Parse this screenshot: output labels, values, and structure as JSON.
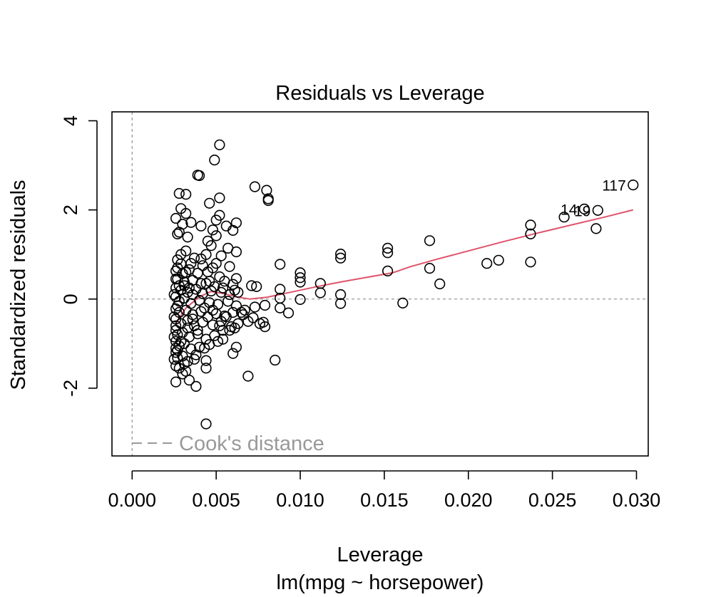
{
  "chart_data": {
    "type": "scatter",
    "title": "Residuals vs Leverage",
    "xlabel": "Leverage",
    "subtitle": "lm(mpg ~ horsepower)",
    "ylabel": "Standardized residuals",
    "xlim": [
      -0.0012,
      0.0307
    ],
    "ylim": [
      -3.52,
      4.2
    ],
    "x_ticks": [
      0.0,
      0.005,
      0.01,
      0.015,
      0.02,
      0.025,
      0.03
    ],
    "x_tick_labels": [
      "0.000",
      "0.005",
      "0.010",
      "0.015",
      "0.020",
      "0.025",
      "0.030"
    ],
    "y_ticks": [
      -2,
      0,
      2,
      4
    ],
    "y_tick_labels": [
      "-2",
      "0",
      "2",
      "4"
    ],
    "legend": {
      "label": "Cook's distance",
      "position": "bottom-left",
      "color": "#999999"
    },
    "reference_lines": {
      "h": 0,
      "v": 0,
      "color": "#999999"
    },
    "smooth_color": "#DF536B",
    "labeled_points": [
      {
        "label": "117",
        "x": 0.0298,
        "y": 2.56
      },
      {
        "label": "14",
        "x": 0.0269,
        "y": 2.02
      },
      {
        "label": "19",
        "x": 0.0277,
        "y": 1.99
      }
    ],
    "points": [
      [
        0.0052,
        3.46
      ],
      [
        0.0049,
        3.12
      ],
      [
        0.0039,
        2.78
      ],
      [
        0.004,
        2.77
      ],
      [
        0.0073,
        2.52
      ],
      [
        0.008,
        2.44
      ],
      [
        0.0028,
        2.37
      ],
      [
        0.0032,
        2.35
      ],
      [
        0.0052,
        2.27
      ],
      [
        0.0081,
        2.25
      ],
      [
        0.0081,
        2.21
      ],
      [
        0.0046,
        2.15
      ],
      [
        0.0029,
        2.03
      ],
      [
        0.0032,
        1.92
      ],
      [
        0.0052,
        1.88
      ],
      [
        0.0026,
        1.81
      ],
      [
        0.0035,
        1.72
      ],
      [
        0.005,
        1.77
      ],
      [
        0.0062,
        1.71
      ],
      [
        0.003,
        1.68
      ],
      [
        0.0041,
        1.64
      ],
      [
        0.0056,
        1.64
      ],
      [
        0.0028,
        1.5
      ],
      [
        0.0033,
        1.39
      ],
      [
        0.0048,
        1.55
      ],
      [
        0.006,
        1.54
      ],
      [
        0.005,
        1.42
      ],
      [
        0.0027,
        1.46
      ],
      [
        0.0045,
        1.3
      ],
      [
        0.0057,
        1.14
      ],
      [
        0.0062,
        1.06
      ],
      [
        0.0032,
        1.08
      ],
      [
        0.0037,
        0.92
      ],
      [
        0.0044,
        1.0
      ],
      [
        0.0053,
        0.97
      ],
      [
        0.0027,
        0.88
      ],
      [
        0.0029,
        0.79
      ],
      [
        0.0035,
        0.8
      ],
      [
        0.0042,
        0.75
      ],
      [
        0.0048,
        0.7
      ],
      [
        0.0058,
        0.73
      ],
      [
        0.0026,
        0.63
      ],
      [
        0.003,
        0.57
      ],
      [
        0.0034,
        0.66
      ],
      [
        0.0039,
        0.58
      ],
      [
        0.0045,
        0.61
      ],
      [
        0.0052,
        0.5
      ],
      [
        0.0062,
        0.46
      ],
      [
        0.0027,
        0.45
      ],
      [
        0.0031,
        0.38
      ],
      [
        0.0036,
        0.42
      ],
      [
        0.0044,
        0.35
      ],
      [
        0.0049,
        0.28
      ],
      [
        0.0055,
        0.4
      ],
      [
        0.006,
        0.33
      ],
      [
        0.0026,
        0.25
      ],
      [
        0.0029,
        0.2
      ],
      [
        0.0033,
        0.15
      ],
      [
        0.0038,
        0.22
      ],
      [
        0.0042,
        0.12
      ],
      [
        0.0047,
        0.18
      ],
      [
        0.0053,
        0.15
      ],
      [
        0.0058,
        0.1
      ],
      [
        0.0063,
        0.15
      ],
      [
        0.0071,
        0.3
      ],
      [
        0.0074,
        0.28
      ],
      [
        0.0026,
        0.05
      ],
      [
        0.0028,
        -0.05
      ],
      [
        0.0031,
        0.02
      ],
      [
        0.0035,
        -0.1
      ],
      [
        0.004,
        -0.03
      ],
      [
        0.0046,
        -0.08
      ],
      [
        0.0051,
        -0.12
      ],
      [
        0.0057,
        -0.05
      ],
      [
        0.0062,
        -0.15
      ],
      [
        0.0073,
        -0.18
      ],
      [
        0.0079,
        -0.14
      ],
      [
        0.0026,
        -0.22
      ],
      [
        0.0028,
        -0.3
      ],
      [
        0.0032,
        -0.25
      ],
      [
        0.0036,
        -0.35
      ],
      [
        0.0041,
        -0.28
      ],
      [
        0.0045,
        -0.4
      ],
      [
        0.005,
        -0.33
      ],
      [
        0.0055,
        -0.38
      ],
      [
        0.006,
        -0.3
      ],
      [
        0.0066,
        -0.35
      ],
      [
        0.0072,
        -0.42
      ],
      [
        0.0026,
        -0.45
      ],
      [
        0.0029,
        -0.55
      ],
      [
        0.0033,
        -0.48
      ],
      [
        0.0037,
        -0.6
      ],
      [
        0.0042,
        -0.52
      ],
      [
        0.0048,
        -0.58
      ],
      [
        0.0053,
        -0.5
      ],
      [
        0.0059,
        -0.62
      ],
      [
        0.0069,
        -0.5
      ],
      [
        0.0076,
        -0.55
      ],
      [
        0.0079,
        -0.62
      ],
      [
        0.0026,
        -0.7
      ],
      [
        0.0027,
        -0.8
      ],
      [
        0.003,
        -0.75
      ],
      [
        0.0034,
        -0.85
      ],
      [
        0.0039,
        -0.78
      ],
      [
        0.0044,
        -0.9
      ],
      [
        0.0049,
        -0.82
      ],
      [
        0.0054,
        -0.7
      ],
      [
        0.0061,
        -0.65
      ],
      [
        0.0026,
        -0.95
      ],
      [
        0.0028,
        -1.05
      ],
      [
        0.0031,
        -1.0
      ],
      [
        0.0035,
        -1.12
      ],
      [
        0.004,
        -1.08
      ],
      [
        0.0046,
        -1.02
      ],
      [
        0.0051,
        -0.95
      ],
      [
        0.0062,
        -1.08
      ],
      [
        0.006,
        -1.22
      ],
      [
        0.0026,
        -1.2
      ],
      [
        0.0027,
        -1.32
      ],
      [
        0.003,
        -1.28
      ],
      [
        0.0033,
        -1.4
      ],
      [
        0.0037,
        -1.35
      ],
      [
        0.0044,
        -1.38
      ],
      [
        0.0026,
        -1.5
      ],
      [
        0.0028,
        -1.55
      ],
      [
        0.0032,
        -1.62
      ],
      [
        0.003,
        -1.68
      ],
      [
        0.0044,
        -1.55
      ],
      [
        0.0026,
        -1.86
      ],
      [
        0.0034,
        -1.82
      ],
      [
        0.0038,
        -1.96
      ],
      [
        0.0069,
        -1.73
      ],
      [
        0.0085,
        -1.37
      ],
      [
        0.0044,
        -2.8
      ],
      [
        0.0026,
        -1.1
      ],
      [
        0.0027,
        -0.15
      ],
      [
        0.0029,
        1.0
      ],
      [
        0.0031,
        0.3
      ],
      [
        0.0033,
        -0.65
      ],
      [
        0.0036,
        0.1
      ],
      [
        0.0038,
        -1.25
      ],
      [
        0.0041,
        0.9
      ],
      [
        0.0043,
        -0.2
      ],
      [
        0.0047,
        1.2
      ],
      [
        0.0054,
        -0.9
      ],
      [
        0.0027,
        0.7
      ],
      [
        0.0025,
        -0.4
      ],
      [
        0.0025,
        -0.85
      ],
      [
        0.0025,
        0.1
      ],
      [
        0.0025,
        -1.35
      ],
      [
        0.0026,
        0.45
      ],
      [
        0.0026,
        -0.6
      ],
      [
        0.0027,
        -1.15
      ],
      [
        0.0028,
        0.3
      ],
      [
        0.0029,
        -0.95
      ],
      [
        0.0031,
        -1.45
      ],
      [
        0.0032,
        0.6
      ],
      [
        0.0034,
        0.25
      ],
      [
        0.0036,
        -0.45
      ],
      [
        0.0039,
        -0.7
      ],
      [
        0.0041,
        0.35
      ],
      [
        0.0043,
        -1.1
      ],
      [
        0.0046,
        0.4
      ],
      [
        0.0048,
        -0.25
      ],
      [
        0.005,
        0.8
      ],
      [
        0.0052,
        -0.6
      ],
      [
        0.0054,
        0.25
      ],
      [
        0.0056,
        -0.4
      ],
      [
        0.0058,
        -0.7
      ],
      [
        0.0061,
        0.2
      ],
      [
        0.0063,
        -0.55
      ],
      [
        0.0065,
        -0.3
      ],
      [
        0.0067,
        -0.25
      ],
      [
        0.0078,
        -0.52
      ],
      [
        0.0088,
        0.78
      ],
      [
        0.0088,
        0.22
      ],
      [
        0.0088,
        0.02
      ],
      [
        0.0088,
        -0.2
      ],
      [
        0.0093,
        -0.31
      ],
      [
        0.01,
        0.59
      ],
      [
        0.01,
        0.48
      ],
      [
        0.01,
        0.38
      ],
      [
        0.01,
        -0.01
      ],
      [
        0.0112,
        0.35
      ],
      [
        0.0112,
        0.14
      ],
      [
        0.0124,
        1.01
      ],
      [
        0.0124,
        0.92
      ],
      [
        0.0124,
        0.1
      ],
      [
        0.0124,
        -0.1
      ],
      [
        0.0152,
        1.14
      ],
      [
        0.0152,
        1.04
      ],
      [
        0.0152,
        0.63
      ],
      [
        0.0161,
        -0.09
      ],
      [
        0.0177,
        1.31
      ],
      [
        0.0177,
        0.69
      ],
      [
        0.0183,
        0.34
      ],
      [
        0.0211,
        0.8
      ],
      [
        0.0218,
        0.87
      ],
      [
        0.0237,
        1.66
      ],
      [
        0.0237,
        1.46
      ],
      [
        0.0237,
        0.83
      ],
      [
        0.0257,
        1.84
      ],
      [
        0.0276,
        1.58
      ],
      [
        0.0277,
        1.99
      ],
      [
        0.0269,
        2.02
      ],
      [
        0.0298,
        2.56
      ]
    ],
    "smooth": [
      [
        0.00255,
        -0.58
      ],
      [
        0.0032,
        -0.2
      ],
      [
        0.004,
        0.05
      ],
      [
        0.0047,
        0.17
      ],
      [
        0.0055,
        0.12
      ],
      [
        0.0062,
        0.05
      ],
      [
        0.007,
        0.0
      ],
      [
        0.008,
        0.04
      ],
      [
        0.009,
        0.12
      ],
      [
        0.01,
        0.2
      ],
      [
        0.011,
        0.28
      ],
      [
        0.0125,
        0.39
      ],
      [
        0.014,
        0.49
      ],
      [
        0.0155,
        0.59
      ],
      [
        0.0165,
        0.72
      ],
      [
        0.018,
        0.88
      ],
      [
        0.02,
        1.08
      ],
      [
        0.022,
        1.28
      ],
      [
        0.024,
        1.47
      ],
      [
        0.026,
        1.65
      ],
      [
        0.028,
        1.83
      ],
      [
        0.0298,
        2.0
      ]
    ]
  }
}
